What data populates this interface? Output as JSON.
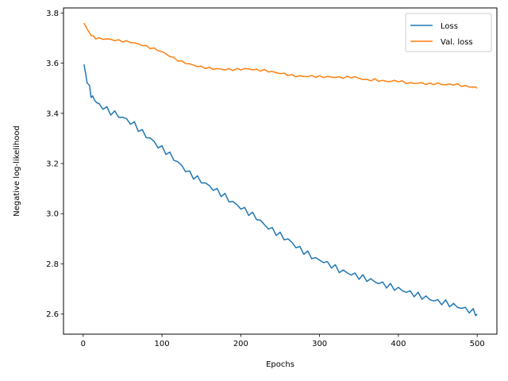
{
  "chart_data": {
    "type": "line",
    "title": "",
    "xlabel": "Epochs",
    "ylabel": "Negative log-likelihood",
    "xlim": [
      -25,
      525
    ],
    "ylim": [
      2.52,
      3.82
    ],
    "xticks": [
      0,
      100,
      200,
      300,
      400,
      500
    ],
    "yticks": [
      2.6,
      2.8,
      3.0,
      3.2,
      3.4,
      3.6,
      3.8
    ],
    "ytick_labels": [
      "2.6",
      "2.8",
      "3.0",
      "3.2",
      "3.4",
      "3.6",
      "3.8"
    ],
    "grid": false,
    "legend": "top-right",
    "series": [
      {
        "name": "Loss",
        "color": "#1f77b4",
        "points": [
          [
            1,
            3.595
          ],
          [
            3,
            3.555
          ],
          [
            5,
            3.53
          ],
          [
            8,
            3.5
          ],
          [
            10,
            3.475
          ],
          [
            12,
            3.46
          ],
          [
            15,
            3.455
          ],
          [
            18,
            3.44
          ],
          [
            20,
            3.435
          ],
          [
            25,
            3.425
          ],
          [
            30,
            3.415
          ],
          [
            35,
            3.405
          ],
          [
            40,
            3.4
          ],
          [
            45,
            3.39
          ],
          [
            50,
            3.383
          ],
          [
            55,
            3.375
          ],
          [
            60,
            3.365
          ],
          [
            65,
            3.355
          ],
          [
            70,
            3.34
          ],
          [
            75,
            3.325
          ],
          [
            80,
            3.31
          ],
          [
            85,
            3.3
          ],
          [
            90,
            3.285
          ],
          [
            95,
            3.27
          ],
          [
            100,
            3.26
          ],
          [
            105,
            3.248
          ],
          [
            110,
            3.235
          ],
          [
            115,
            3.22
          ],
          [
            120,
            3.205
          ],
          [
            125,
            3.19
          ],
          [
            130,
            3.175
          ],
          [
            135,
            3.16
          ],
          [
            140,
            3.15
          ],
          [
            145,
            3.14
          ],
          [
            150,
            3.13
          ],
          [
            155,
            3.12
          ],
          [
            160,
            3.11
          ],
          [
            165,
            3.1
          ],
          [
            170,
            3.09
          ],
          [
            175,
            3.08
          ],
          [
            180,
            3.07
          ],
          [
            185,
            3.055
          ],
          [
            190,
            3.045
          ],
          [
            195,
            3.035
          ],
          [
            200,
            3.025
          ],
          [
            205,
            3.015
          ],
          [
            210,
            3.005
          ],
          [
            215,
            2.995
          ],
          [
            220,
            2.985
          ],
          [
            225,
            2.97
          ],
          [
            230,
            2.955
          ],
          [
            235,
            2.945
          ],
          [
            240,
            2.935
          ],
          [
            245,
            2.925
          ],
          [
            250,
            2.915
          ],
          [
            255,
            2.905
          ],
          [
            260,
            2.895
          ],
          [
            265,
            2.885
          ],
          [
            270,
            2.87
          ],
          [
            275,
            2.86
          ],
          [
            280,
            2.85
          ],
          [
            285,
            2.84
          ],
          [
            290,
            2.83
          ],
          [
            295,
            2.82
          ],
          [
            300,
            2.815
          ],
          [
            305,
            2.81
          ],
          [
            310,
            2.8
          ],
          [
            315,
            2.795
          ],
          [
            320,
            2.785
          ],
          [
            325,
            2.775
          ],
          [
            330,
            2.77
          ],
          [
            335,
            2.765
          ],
          [
            340,
            2.76
          ],
          [
            345,
            2.755
          ],
          [
            350,
            2.75
          ],
          [
            355,
            2.745
          ],
          [
            360,
            2.74
          ],
          [
            365,
            2.735
          ],
          [
            370,
            2.73
          ],
          [
            375,
            2.725
          ],
          [
            380,
            2.72
          ],
          [
            385,
            2.715
          ],
          [
            390,
            2.71
          ],
          [
            395,
            2.705
          ],
          [
            400,
            2.7
          ],
          [
            405,
            2.695
          ],
          [
            410,
            2.69
          ],
          [
            415,
            2.685
          ],
          [
            420,
            2.68
          ],
          [
            425,
            2.675
          ],
          [
            430,
            2.67
          ],
          [
            435,
            2.665
          ],
          [
            440,
            2.66
          ],
          [
            445,
            2.655
          ],
          [
            450,
            2.65
          ],
          [
            455,
            2.648
          ],
          [
            460,
            2.645
          ],
          [
            465,
            2.64
          ],
          [
            470,
            2.635
          ],
          [
            475,
            2.63
          ],
          [
            480,
            2.625
          ],
          [
            485,
            2.62
          ],
          [
            490,
            2.615
          ],
          [
            495,
            2.61
          ],
          [
            498,
            2.605
          ],
          [
            500,
            2.6
          ]
        ]
      },
      {
        "name": "Val. loss",
        "color": "#ff7f0e",
        "points": [
          [
            1,
            3.76
          ],
          [
            3,
            3.75
          ],
          [
            5,
            3.735
          ],
          [
            8,
            3.72
          ],
          [
            10,
            3.712
          ],
          [
            13,
            3.705
          ],
          [
            16,
            3.7
          ],
          [
            20,
            3.698
          ],
          [
            25,
            3.697
          ],
          [
            30,
            3.696
          ],
          [
            35,
            3.694
          ],
          [
            40,
            3.692
          ],
          [
            45,
            3.69
          ],
          [
            50,
            3.688
          ],
          [
            55,
            3.686
          ],
          [
            60,
            3.684
          ],
          [
            65,
            3.68
          ],
          [
            70,
            3.676
          ],
          [
            75,
            3.672
          ],
          [
            80,
            3.667
          ],
          [
            85,
            3.662
          ],
          [
            90,
            3.657
          ],
          [
            95,
            3.652
          ],
          [
            100,
            3.645
          ],
          [
            105,
            3.637
          ],
          [
            110,
            3.628
          ],
          [
            115,
            3.62
          ],
          [
            120,
            3.612
          ],
          [
            125,
            3.606
          ],
          [
            130,
            3.601
          ],
          [
            135,
            3.596
          ],
          [
            140,
            3.592
          ],
          [
            145,
            3.588
          ],
          [
            150,
            3.585
          ],
          [
            155,
            3.582
          ],
          [
            160,
            3.58
          ],
          [
            165,
            3.578
          ],
          [
            170,
            3.577
          ],
          [
            175,
            3.576
          ],
          [
            180,
            3.575
          ],
          [
            185,
            3.575
          ],
          [
            190,
            3.574
          ],
          [
            195,
            3.575
          ],
          [
            200,
            3.576
          ],
          [
            205,
            3.577
          ],
          [
            210,
            3.577
          ],
          [
            215,
            3.575
          ],
          [
            220,
            3.573
          ],
          [
            225,
            3.572
          ],
          [
            230,
            3.571
          ],
          [
            235,
            3.568
          ],
          [
            240,
            3.565
          ],
          [
            245,
            3.562
          ],
          [
            250,
            3.56
          ],
          [
            255,
            3.557
          ],
          [
            260,
            3.554
          ],
          [
            265,
            3.551
          ],
          [
            270,
            3.549
          ],
          [
            275,
            3.548
          ],
          [
            280,
            3.547
          ],
          [
            285,
            3.548
          ],
          [
            290,
            3.548
          ],
          [
            295,
            3.547
          ],
          [
            300,
            3.546
          ],
          [
            305,
            3.546
          ],
          [
            310,
            3.545
          ],
          [
            315,
            3.545
          ],
          [
            320,
            3.544
          ],
          [
            325,
            3.543
          ],
          [
            330,
            3.543
          ],
          [
            335,
            3.544
          ],
          [
            340,
            3.545
          ],
          [
            345,
            3.544
          ],
          [
            350,
            3.54
          ],
          [
            355,
            3.536
          ],
          [
            360,
            3.533
          ],
          [
            365,
            3.533
          ],
          [
            370,
            3.534
          ],
          [
            375,
            3.531
          ],
          [
            380,
            3.529
          ],
          [
            385,
            3.528
          ],
          [
            390,
            3.528
          ],
          [
            395,
            3.529
          ],
          [
            400,
            3.529
          ],
          [
            405,
            3.526
          ],
          [
            410,
            3.522
          ],
          [
            415,
            3.52
          ],
          [
            420,
            3.52
          ],
          [
            425,
            3.521
          ],
          [
            430,
            3.52
          ],
          [
            435,
            3.518
          ],
          [
            440,
            3.517
          ],
          [
            445,
            3.518
          ],
          [
            450,
            3.518
          ],
          [
            455,
            3.516
          ],
          [
            460,
            3.514
          ],
          [
            465,
            3.515
          ],
          [
            470,
            3.516
          ],
          [
            475,
            3.514
          ],
          [
            480,
            3.511
          ],
          [
            485,
            3.508
          ],
          [
            490,
            3.506
          ],
          [
            495,
            3.505
          ],
          [
            498,
            3.503
          ],
          [
            500,
            3.5
          ]
        ]
      }
    ]
  }
}
